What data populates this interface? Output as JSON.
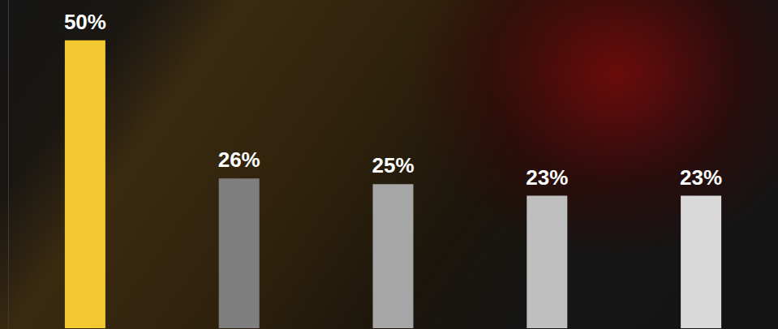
{
  "chart_data": {
    "type": "bar",
    "categories": [
      null,
      null,
      null,
      null,
      null
    ],
    "values": [
      50,
      26,
      25,
      23,
      23
    ],
    "value_labels": [
      "50%",
      "26%",
      "25%",
      "23%",
      "23%"
    ],
    "colors": [
      "#f2c931",
      "#7f7f7f",
      "#a6a6a6",
      "#bfbfbf",
      "#d9d9d9"
    ],
    "ylim": [
      0,
      57
    ],
    "grid": false,
    "data_labels": true,
    "tick_labels": false
  }
}
